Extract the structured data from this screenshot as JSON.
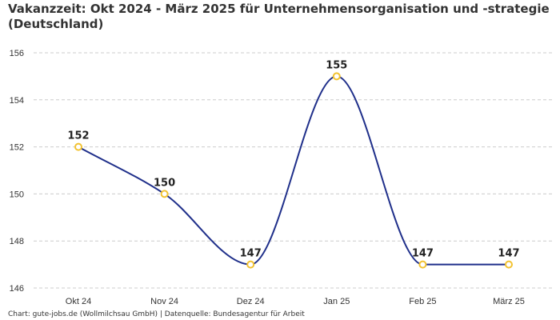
{
  "chart_data": {
    "type": "line",
    "title": "Vakanzzeit: Okt 2024 - März 2025 für Unternehmensorganisation und -strategie (Deutschland)",
    "categories": [
      "Okt 24",
      "Nov 24",
      "Dez 24",
      "Jan 25",
      "Feb 25",
      "März 25"
    ],
    "series": [
      {
        "name": "Vakanzzeit",
        "values": [
          152,
          150,
          147,
          155,
          147,
          147
        ]
      }
    ],
    "data_labels": [
      "152",
      "150",
      "147",
      "155",
      "147",
      "147"
    ],
    "ylim": [
      146,
      156
    ],
    "yticks": [
      146,
      148,
      150,
      152,
      154,
      156
    ],
    "ytick_labels": [
      "146",
      "148",
      "150",
      "152",
      "154",
      "156"
    ],
    "xlabel": "",
    "ylabel": "",
    "grid": true,
    "line_color": "#1f2f8a",
    "marker_color": "#f2c230",
    "grid_color": "#cccccc"
  },
  "footer": {
    "text": "Chart: gute-jobs.de (Wollmilchsau GmbH) | Datenquelle: Bundesagentur für Arbeit"
  }
}
